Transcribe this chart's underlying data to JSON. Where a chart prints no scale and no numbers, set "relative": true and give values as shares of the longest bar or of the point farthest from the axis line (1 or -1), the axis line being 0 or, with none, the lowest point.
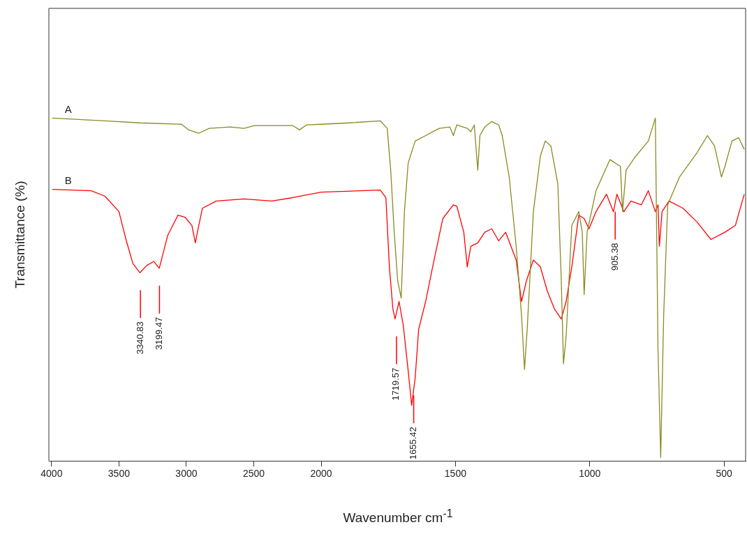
{
  "chart_data": [
    {
      "type": "line",
      "ylabel": "Transmittance (%)",
      "relative": true,
      "grid": false,
      "legend": false,
      "marker": "none",
      "line_style": "solid",
      "tick_labels": "x",
      "xlim": [
        4020,
        2000
      ],
      "xticks": [
        4000,
        3500,
        3000,
        2500
      ],
      "annotations": [
        {
          "text": "3340.83",
          "x": 3340.83
        },
        {
          "text": "3199.47",
          "x": 3199.47
        }
      ],
      "series": [
        {
          "name": "A",
          "color": "#8a8a22",
          "x": [
            3995,
            3603,
            3345,
            3036,
            2985,
            2907,
            2830,
            2675,
            2572,
            2495,
            2211,
            2160,
            2108,
            2000
          ],
          "values": [
            1,
            0.992,
            0.986,
            0.982,
            0.966,
            0.956,
            0.97,
            0.974,
            0.97,
            0.978,
            0.978,
            0.966,
            0.98,
            0.982
          ]
        },
        {
          "name": "B",
          "color": "#ff0000",
          "x": [
            3995,
            3706,
            3603,
            3500,
            3448,
            3397,
            3345,
            3294,
            3242,
            3201,
            3139,
            3062,
            3010,
            2959,
            2933,
            2918,
            2881,
            2778,
            2572,
            2366,
            2211,
            2000
          ],
          "values": [
            0.792,
            0.788,
            0.772,
            0.727,
            0.646,
            0.576,
            0.549,
            0.57,
            0.582,
            0.562,
            0.657,
            0.717,
            0.711,
            0.687,
            0.636,
            0.667,
            0.737,
            0.758,
            0.764,
            0.758,
            0.768,
            0.784
          ]
        }
      ]
    },
    {
      "type": "line",
      "xlabel": "Wavenumber cm$^{-1}$",
      "relative": true,
      "grid": false,
      "legend": false,
      "marker": "none",
      "line_style": "solid",
      "tick_labels": "x",
      "xlim": [
        2000,
        420
      ],
      "xticks": [
        2000,
        1500,
        1000,
        500
      ],
      "annotations": [
        {
          "text": "1719.57",
          "x": 1719.57
        },
        {
          "text": "1655.42",
          "x": 1655.42
        },
        {
          "text": "905.38",
          "x": 905.38
        }
      ],
      "series": [
        {
          "color": "#8a8a22",
          "x": [
            2000,
            1896,
            1780,
            1754,
            1741,
            1728,
            1715,
            1702,
            1690,
            1676,
            1650,
            1611,
            1585,
            1560,
            1521,
            1508,
            1495,
            1456,
            1443,
            1430,
            1417,
            1409,
            1391,
            1365,
            1339,
            1326,
            1300,
            1274,
            1254,
            1243,
            1233,
            1210,
            1184,
            1166,
            1145,
            1119,
            1106,
            1098,
            1088,
            1067,
            1041,
            1028,
            1021,
            1010,
            977,
            925,
            886,
            878,
            865,
            829,
            782,
            756,
            746,
            736,
            725,
            710,
            666,
            601,
            562,
            536,
            510,
            497,
            471,
            446,
            425
          ],
          "values": [
            0.982,
            0.986,
            0.992,
            0.97,
            0.848,
            0.667,
            0.525,
            0.475,
            0.727,
            0.869,
            0.933,
            0.949,
            0.96,
            0.97,
            0.974,
            0.949,
            0.98,
            0.97,
            0.96,
            0.98,
            0.848,
            0.949,
            0.974,
            0.99,
            0.98,
            0.949,
            0.828,
            0.626,
            0.424,
            0.267,
            0.384,
            0.727,
            0.889,
            0.933,
            0.919,
            0.808,
            0.525,
            0.283,
            0.364,
            0.687,
            0.727,
            0.667,
            0.485,
            0.667,
            0.788,
            0.879,
            0.859,
            0.727,
            0.848,
            0.889,
            0.933,
            1,
            0.323,
            0.01,
            0.424,
            0.747,
            0.828,
            0.899,
            0.949,
            0.919,
            0.828,
            0.859,
            0.933,
            0.943,
            0.909
          ]
        },
        {
          "color": "#ff0000",
          "x": [
            2000,
            1780,
            1759,
            1746,
            1733,
            1725,
            1710,
            1694,
            1676,
            1663,
            1650,
            1637,
            1611,
            1585,
            1547,
            1508,
            1495,
            1469,
            1456,
            1443,
            1417,
            1391,
            1365,
            1339,
            1313,
            1274,
            1254,
            1236,
            1210,
            1184,
            1158,
            1132,
            1106,
            1088,
            1067,
            1041,
            1021,
            1003,
            977,
            938,
            912,
            899,
            873,
            847,
            808,
            782,
            756,
            746,
            741,
            731,
            705,
            653,
            601,
            549,
            497,
            458,
            425
          ],
          "values": [
            0.784,
            0.79,
            0.768,
            0.566,
            0.444,
            0.414,
            0.465,
            0.394,
            0.263,
            0.162,
            0.242,
            0.384,
            0.465,
            0.566,
            0.707,
            0.747,
            0.743,
            0.667,
            0.566,
            0.626,
            0.636,
            0.667,
            0.677,
            0.642,
            0.667,
            0.586,
            0.465,
            0.525,
            0.586,
            0.566,
            0.495,
            0.444,
            0.414,
            0.465,
            0.566,
            0.717,
            0.707,
            0.677,
            0.727,
            0.778,
            0.727,
            0.778,
            0.727,
            0.758,
            0.747,
            0.788,
            0.727,
            0.747,
            0.626,
            0.727,
            0.758,
            0.737,
            0.697,
            0.646,
            0.667,
            0.687,
            0.778
          ]
        }
      ]
    }
  ]
}
